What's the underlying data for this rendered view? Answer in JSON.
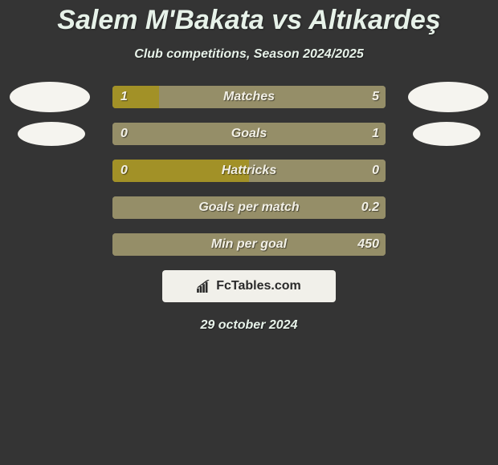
{
  "colors": {
    "page_bg": "#343434",
    "title_color": "#e7f2e9",
    "subtitle_color": "#e7f2e9",
    "label_color": "#f2f0e6",
    "left_fill": "#a29127",
    "right_fill": "#958e68",
    "track_bg": "#958e68",
    "oval_fill": "#f5f4ef",
    "logo_bg": "#f1f0ea",
    "logo_text_color": "#2a2a2a",
    "date_color": "#e7f2e9"
  },
  "title": "Salem M'Bakata vs Altıkardeş",
  "subtitle": "Club competitions, Season 2024/2025",
  "stats": [
    {
      "label": "Matches",
      "left_val": "1",
      "right_val": "5",
      "left_pct": 17,
      "right_pct": 83,
      "show_left_oval": true,
      "show_right_oval": true
    },
    {
      "label": "Goals",
      "left_val": "0",
      "right_val": "1",
      "left_pct": 0,
      "right_pct": 100,
      "show_left_oval": true,
      "show_right_oval": true
    },
    {
      "label": "Hattricks",
      "left_val": "0",
      "right_val": "0",
      "left_pct": 50,
      "right_pct": 50,
      "show_left_oval": false,
      "show_right_oval": false
    },
    {
      "label": "Goals per match",
      "left_val": "",
      "right_val": "0.2",
      "left_pct": 0,
      "right_pct": 100,
      "show_left_oval": false,
      "show_right_oval": false
    },
    {
      "label": "Min per goal",
      "left_val": "",
      "right_val": "450",
      "left_pct": 0,
      "right_pct": 100,
      "show_left_oval": false,
      "show_right_oval": false
    }
  ],
  "logo": {
    "text": "FcTables.com"
  },
  "date": "29 october 2024"
}
